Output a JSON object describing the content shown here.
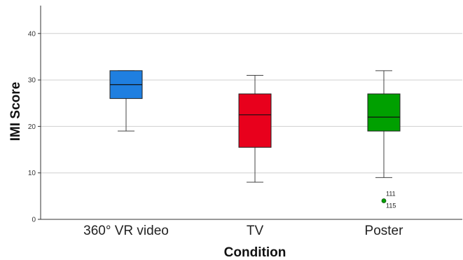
{
  "chart_data": {
    "type": "box",
    "xlabel": "Condition",
    "ylabel": "IMI Score",
    "ylim": [
      0,
      46
    ],
    "yticks": [
      0,
      10,
      20,
      30,
      40
    ],
    "grid": "horizontal",
    "categories": [
      "360° VR video",
      "TV",
      "Poster"
    ],
    "boxes": [
      {
        "category": "360° VR video",
        "min": 19,
        "q1": 26,
        "median": 29,
        "q3": 32,
        "max": 32,
        "color": "#1f7fe0",
        "outliers": []
      },
      {
        "category": "TV",
        "min": 8,
        "q1": 15.5,
        "median": 22.5,
        "q3": 27,
        "max": 31,
        "color": "#e8001c",
        "outliers": []
      },
      {
        "category": "Poster",
        "min": 9,
        "q1": 19,
        "median": 22,
        "q3": 27,
        "max": 32,
        "color": "#00a000",
        "outliers": [
          {
            "value": 4,
            "labels": [
              "111",
              "115"
            ]
          }
        ]
      }
    ]
  }
}
